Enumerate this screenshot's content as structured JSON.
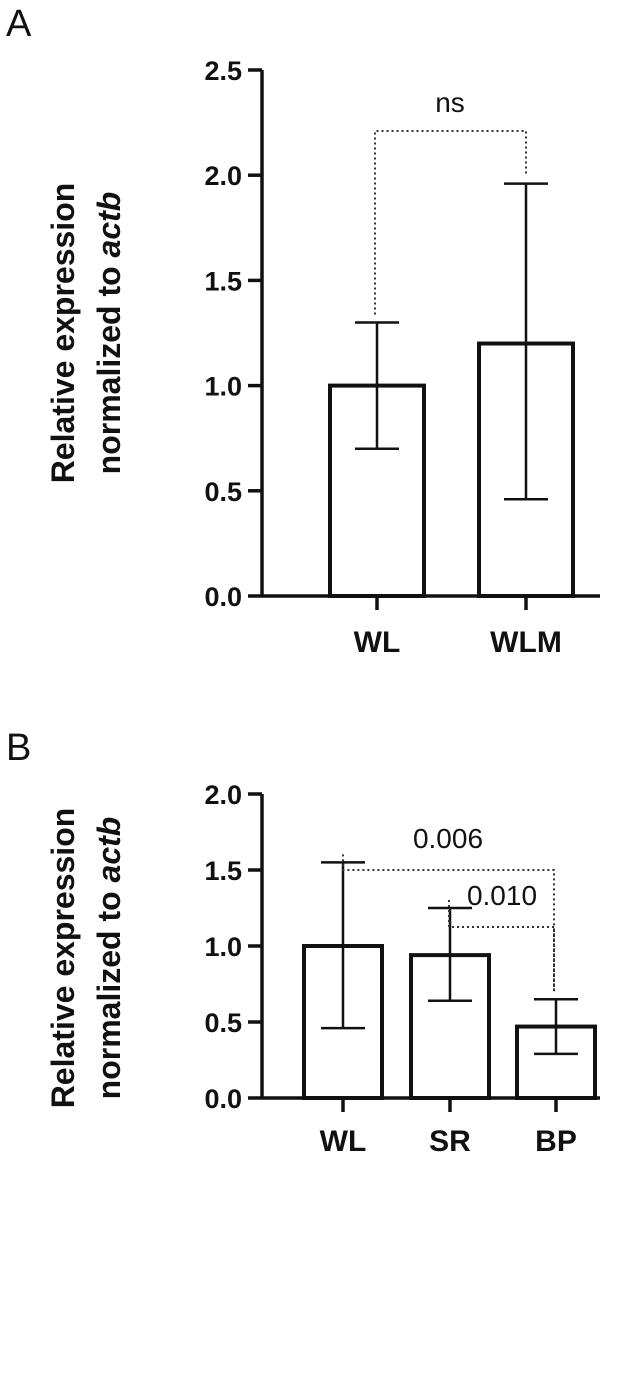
{
  "chart_data": [
    {
      "panel": "A",
      "type": "bar",
      "ylabel_line1": "Relative expression",
      "ylabel_line2_prefix": "normalized to ",
      "ylabel_line2_italic": "actb",
      "ylim": [
        0,
        2.5
      ],
      "yticks": [
        "0.0",
        "0.5",
        "1.0",
        "1.5",
        "2.0",
        "2.5"
      ],
      "categories": [
        "WL",
        "WLM"
      ],
      "values": [
        1.0,
        1.2
      ],
      "error_low": [
        0.7,
        0.46
      ],
      "error_high": [
        1.3,
        1.96
      ],
      "comparisons": [
        {
          "from": 0,
          "to": 1,
          "label": "ns"
        }
      ]
    },
    {
      "panel": "B",
      "type": "bar",
      "ylabel_line1": "Relative expression",
      "ylabel_line2_prefix": "normalized to ",
      "ylabel_line2_italic": "actb",
      "ylim": [
        0,
        2.0
      ],
      "yticks": [
        "0.0",
        "0.5",
        "1.0",
        "1.5",
        "2.0"
      ],
      "categories": [
        "WL",
        "SR",
        "BP"
      ],
      "values": [
        1.0,
        0.94,
        0.47
      ],
      "error_low": [
        0.46,
        0.64,
        0.29
      ],
      "error_high": [
        1.55,
        1.25,
        0.65
      ],
      "comparisons": [
        {
          "from": 0,
          "to": 2,
          "label": "0.006"
        },
        {
          "from": 1,
          "to": 2,
          "label": "0.010"
        }
      ]
    }
  ]
}
